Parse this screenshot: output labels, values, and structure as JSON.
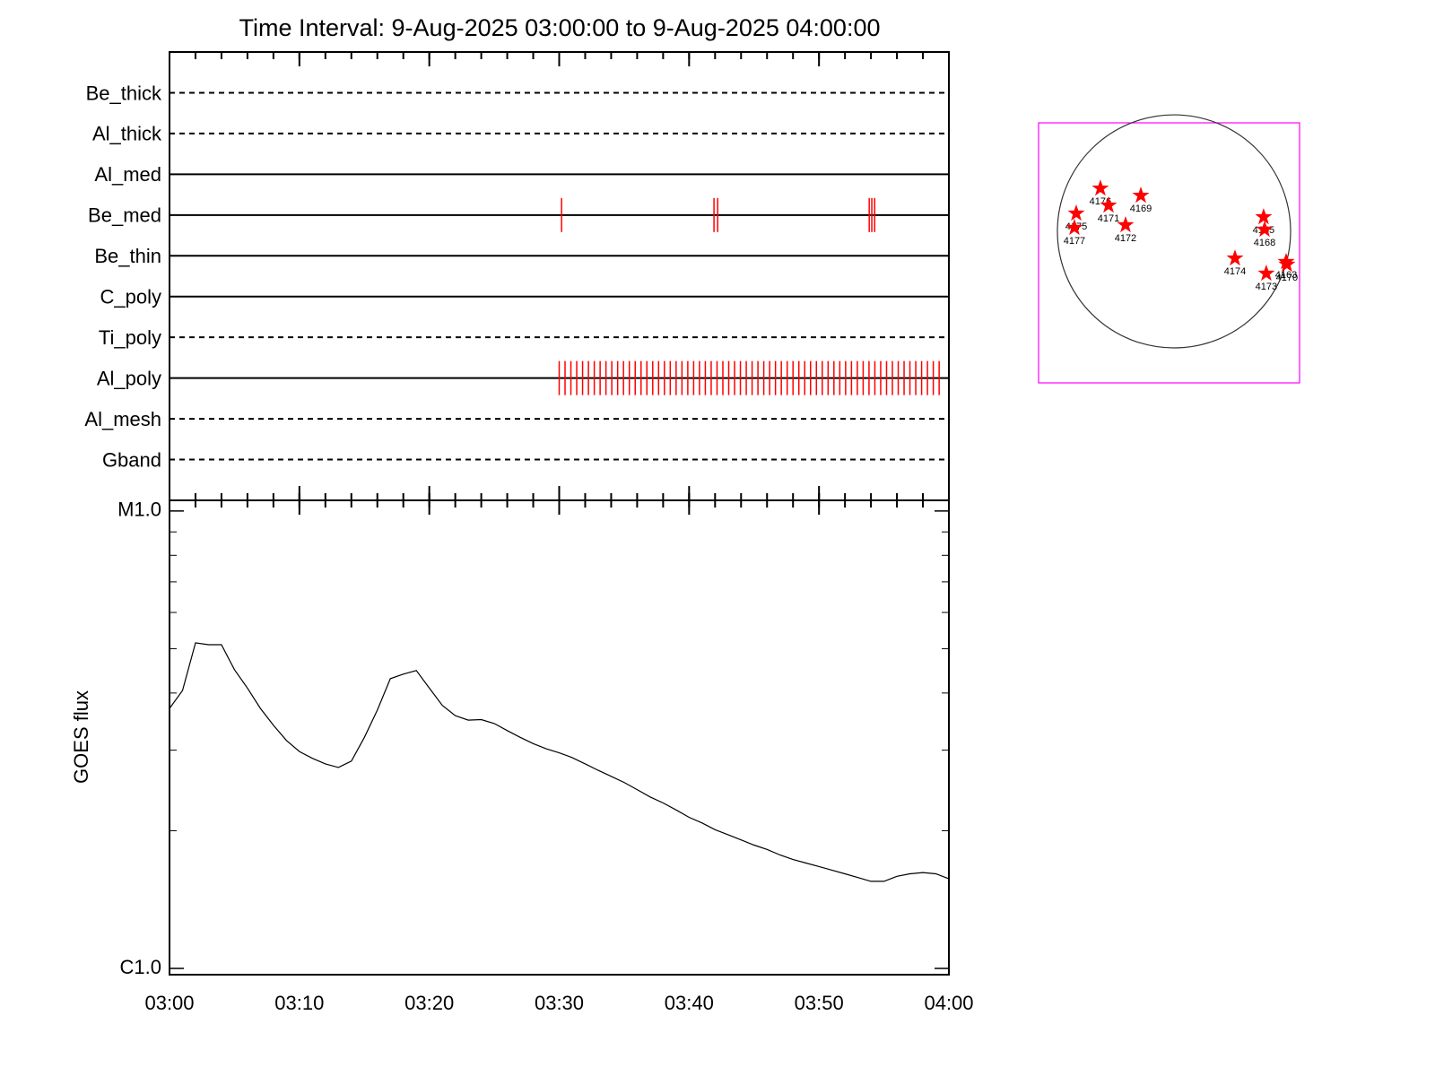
{
  "chart_data": [
    {
      "type": "events",
      "title": "Time Interval:  9-Aug-2025 03:00:00 to  9-Aug-2025 04:00:00",
      "xlim": [
        "03:00:00",
        "04:00:00"
      ],
      "event_color": "#ff0000",
      "rows": [
        {
          "name": "Be_thick",
          "style": "dashed",
          "events": []
        },
        {
          "name": "Al_thick",
          "style": "dashed",
          "events": []
        },
        {
          "name": "Al_med",
          "style": "solid",
          "events": []
        },
        {
          "name": "Be_med",
          "style": "solid",
          "events": [
            "03:30:11",
            "03:41:55",
            "03:42:12",
            "03:53:52",
            "03:54:04",
            "03:54:17"
          ]
        },
        {
          "name": "Be_thin",
          "style": "solid",
          "events": []
        },
        {
          "name": "C_poly",
          "style": "solid",
          "events": []
        },
        {
          "name": "Ti_poly",
          "style": "dashed",
          "events": []
        },
        {
          "name": "Al_poly",
          "style": "solid",
          "events": [
            "03:30:00",
            "03:30:27",
            "03:30:54",
            "03:31:21",
            "03:31:48",
            "03:32:15",
            "03:32:42",
            "03:33:09",
            "03:33:36",
            "03:34:03",
            "03:34:30",
            "03:34:57",
            "03:35:24",
            "03:35:51",
            "03:36:18",
            "03:36:45",
            "03:37:12",
            "03:37:39",
            "03:38:06",
            "03:38:33",
            "03:39:00",
            "03:39:27",
            "03:39:54",
            "03:40:21",
            "03:40:48",
            "03:41:15",
            "03:41:42",
            "03:42:09",
            "03:42:36",
            "03:43:03",
            "03:43:30",
            "03:43:57",
            "03:44:24",
            "03:44:51",
            "03:45:18",
            "03:45:45",
            "03:46:12",
            "03:46:39",
            "03:47:06",
            "03:47:33",
            "03:48:00",
            "03:48:27",
            "03:48:54",
            "03:49:21",
            "03:49:48",
            "03:50:15",
            "03:50:42",
            "03:51:09",
            "03:51:36",
            "03:52:03",
            "03:52:30",
            "03:52:57",
            "03:53:24",
            "03:53:51",
            "03:54:18",
            "03:54:45",
            "03:55:12",
            "03:55:39",
            "03:56:06",
            "03:56:33",
            "03:57:00",
            "03:57:27",
            "03:57:54",
            "03:58:21",
            "03:58:48",
            "03:59:15"
          ]
        },
        {
          "name": "Al_mesh",
          "style": "dashed",
          "events": []
        },
        {
          "name": "Gband",
          "style": "dashed",
          "events": []
        }
      ]
    },
    {
      "type": "line",
      "ylabel": "GOES flux",
      "color": "#000000",
      "log_y": true,
      "ylim": [
        9.69e-07,
        1.055e-05
      ],
      "yticks": [
        {
          "value": 1e-06,
          "label": "C1.0"
        },
        {
          "value": 1e-05,
          "label": "M1.0"
        }
      ],
      "minor_yticks": [
        2e-06,
        3e-06,
        4e-06,
        5e-06,
        6e-06,
        7e-06,
        8e-06,
        9e-06
      ],
      "xlim": [
        "03:00",
        "04:00"
      ],
      "xticks": [
        "03:00",
        "03:10",
        "03:20",
        "03:30",
        "03:40",
        "03:50",
        "04:00"
      ],
      "minor_xtick_step": 2,
      "x": [
        "03:00",
        "03:01",
        "03:02",
        "03:03",
        "03:04",
        "03:05",
        "03:06",
        "03:07",
        "03:08",
        "03:09",
        "03:10",
        "03:11",
        "03:12",
        "03:13",
        "03:14",
        "03:15",
        "03:16",
        "03:17",
        "03:18",
        "03:19",
        "03:20",
        "03:21",
        "03:22",
        "03:23",
        "03:24",
        "03:25",
        "03:26",
        "03:27",
        "03:28",
        "03:29",
        "03:30",
        "03:31",
        "03:32",
        "03:33",
        "03:34",
        "03:35",
        "03:36",
        "03:37",
        "03:38",
        "03:39",
        "03:40",
        "03:41",
        "03:42",
        "03:43",
        "03:44",
        "03:45",
        "03:46",
        "03:47",
        "03:48",
        "03:49",
        "03:50",
        "03:51",
        "03:52",
        "03:53",
        "03:54",
        "03:55",
        "03:56",
        "03:57",
        "03:58",
        "03:59",
        "04:00"
      ],
      "values": [
        3.7e-06,
        4.05e-06,
        5.15e-06,
        5.1e-06,
        5.1e-06,
        4.5e-06,
        4.1e-06,
        3.7e-06,
        3.4e-06,
        3.15e-06,
        2.98e-06,
        2.88e-06,
        2.8e-06,
        2.75e-06,
        2.84e-06,
        3.2e-06,
        3.67e-06,
        4.3e-06,
        4.4e-06,
        4.48e-06,
        4.1e-06,
        3.76e-06,
        3.57e-06,
        3.49e-06,
        3.5e-06,
        3.43e-06,
        3.31e-06,
        3.2e-06,
        3.1e-06,
        3.02e-06,
        2.96e-06,
        2.89e-06,
        2.8e-06,
        2.71e-06,
        2.63e-06,
        2.55e-06,
        2.46e-06,
        2.37e-06,
        2.3e-06,
        2.22e-06,
        2.14e-06,
        2.08e-06,
        2.01e-06,
        1.96e-06,
        1.91e-06,
        1.86e-06,
        1.82e-06,
        1.77e-06,
        1.73e-06,
        1.7e-06,
        1.67e-06,
        1.64e-06,
        1.61e-06,
        1.58e-06,
        1.55e-06,
        1.55e-06,
        1.59e-06,
        1.61e-06,
        1.62e-06,
        1.61e-06,
        1.57e-06
      ]
    },
    {
      "type": "map",
      "xlim": [
        -1115,
        1034
      ],
      "ylim": [
        -1248,
        894
      ],
      "frame_color": "#ff00ff",
      "marker_color": "#ff0000",
      "disk": {
        "x": 0,
        "y": 0,
        "r": 960
      },
      "regions": [
        {
          "name": "4176",
          "x": -606,
          "y": 354
        },
        {
          "name": "4171",
          "x": -539,
          "y": 214
        },
        {
          "name": "4169",
          "x": -273,
          "y": 295
        },
        {
          "name": "4175",
          "x": -805,
          "y": 148
        },
        {
          "name": "4177",
          "x": -820,
          "y": 30
        },
        {
          "name": "4172",
          "x": -399,
          "y": 52
        },
        {
          "name": "4165",
          "x": 738,
          "y": 118
        },
        {
          "name": "4168",
          "x": 746,
          "y": 15
        },
        {
          "name": "4174",
          "x": 502,
          "y": -222
        },
        {
          "name": "4163",
          "x": 923,
          "y": -251
        },
        {
          "name": "4170",
          "x": 930,
          "y": -273
        },
        {
          "name": "4173",
          "x": 760,
          "y": -347
        }
      ]
    }
  ]
}
